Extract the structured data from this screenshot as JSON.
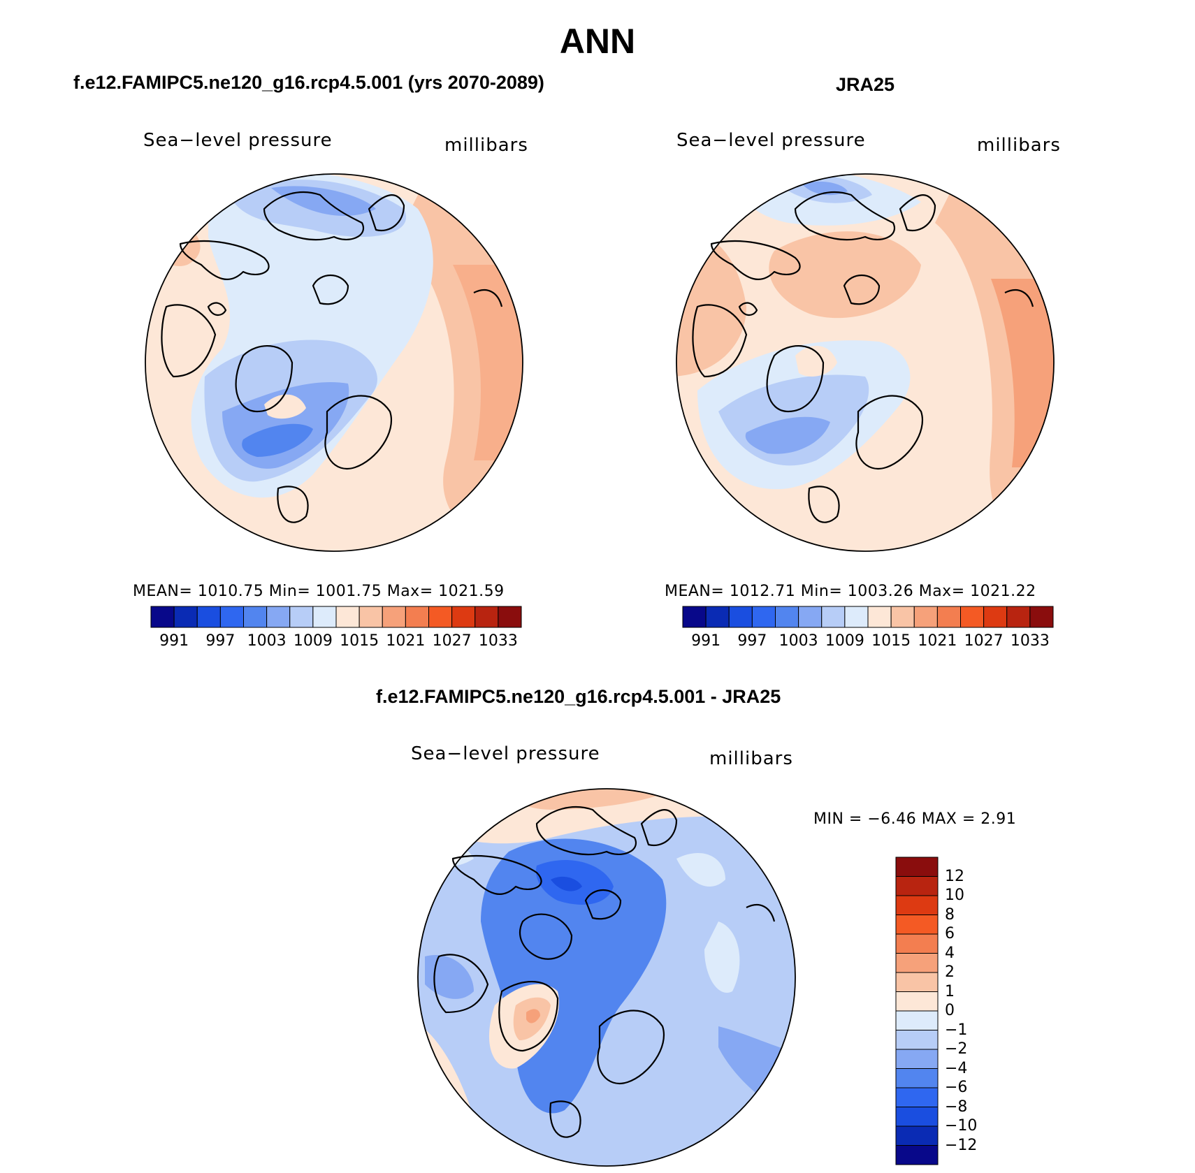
{
  "title": "ANN",
  "panels": {
    "model": {
      "title": "f.e12.FAMIPC5.ne120_g16.rcp4.5.001 (yrs 2070-2089)",
      "variable": "Sea−level pressure",
      "units": "millibars",
      "stats": "MEAN=  1010.75    Min=  1001.75    Max=  1021.59",
      "colorbar_ticks": [
        "991",
        "997",
        "1003",
        "1009",
        "1015",
        "1021",
        "1027",
        "1033"
      ]
    },
    "obs": {
      "title": "JRA25",
      "variable": "Sea−level pressure",
      "units": "millibars",
      "stats": "MEAN=  1012.71    Min=  1003.26    Max=  1021.22",
      "colorbar_ticks": [
        "991",
        "997",
        "1003",
        "1009",
        "1015",
        "1021",
        "1027",
        "1033"
      ]
    },
    "diff": {
      "title": "f.e12.FAMIPC5.ne120_g16.rcp4.5.001 - JRA25",
      "variable": "Sea−level pressure",
      "units": "millibars",
      "stats": "MIN =   −6.46  MAX =    2.91",
      "colorbar_ticks": [
        "12",
        "10",
        "8",
        "6",
        "4",
        "2",
        "1",
        "0",
        "−1",
        "−2",
        "−4",
        "−6",
        "−8",
        "−10",
        "−12"
      ]
    }
  },
  "palette": [
    "#08088a",
    "#0a2bb4",
    "#1a4ee0",
    "#2f67f0",
    "#5285ef",
    "#86a8f3",
    "#b7cdf7",
    "#ddebfb",
    "#fde7d7",
    "#f9c4a6",
    "#f6a17a",
    "#f37e50",
    "#f45a24",
    "#dd3a12",
    "#b82410",
    "#8a0d0d"
  ]
}
